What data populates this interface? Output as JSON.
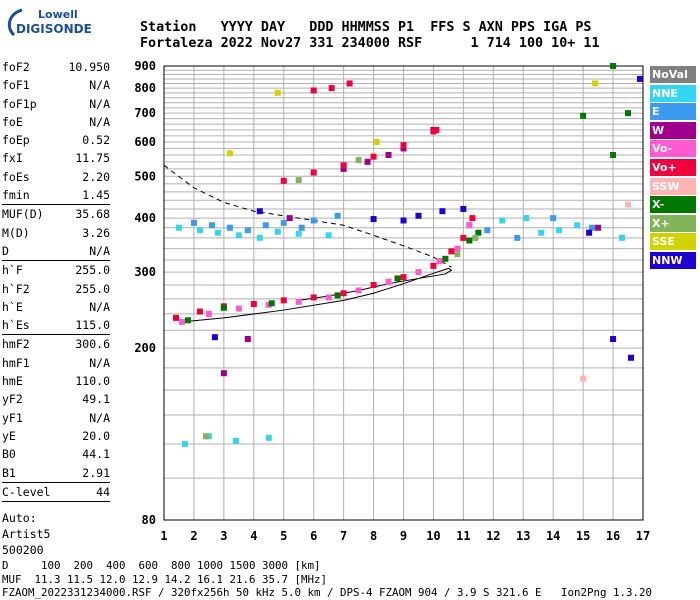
{
  "logo": {
    "line1": "Lowell",
    "line2": "DIGISONDE"
  },
  "header": {
    "line1": "Station   YYYY DAY   DDD HHMMSS P1  FFS S AXN PPS IGA PS",
    "line2": "Fortaleza 2022 Nov27 331 234000 RSF      1 714 100 10+ 11"
  },
  "params": {
    "group1": [
      {
        "label": "foF2",
        "value": "10.950"
      },
      {
        "label": "foF1",
        "value": "N/A"
      },
      {
        "label": "foF1p",
        "value": "N/A"
      },
      {
        "label": "foE",
        "value": "N/A"
      },
      {
        "label": "foEp",
        "value": "0.52"
      },
      {
        "label": "fxI",
        "value": "11.75"
      },
      {
        "label": "foEs",
        "value": "2.20"
      },
      {
        "label": "fmin",
        "value": "1.45"
      }
    ],
    "group2": [
      {
        "label": "MUF(D)",
        "value": "35.68"
      },
      {
        "label": "M(D)",
        "value": "3.26"
      },
      {
        "label": "D",
        "value": "N/A"
      }
    ],
    "group3": [
      {
        "label": "h`F",
        "value": "255.0"
      },
      {
        "label": "h`F2",
        "value": "255.0"
      },
      {
        "label": "h`E",
        "value": "N/A"
      },
      {
        "label": "h`Es",
        "value": "115.0"
      }
    ],
    "group4": [
      {
        "label": "hmF2",
        "value": "300.6"
      },
      {
        "label": "hmF1",
        "value": "N/A"
      },
      {
        "label": "hmE",
        "value": "110.0"
      },
      {
        "label": "yF2",
        "value": "49.1"
      },
      {
        "label": "yF1",
        "value": "N/A"
      },
      {
        "label": "yE",
        "value": "20.0"
      },
      {
        "label": "B0",
        "value": "44.1"
      },
      {
        "label": "B1",
        "value": "2.91"
      }
    ],
    "group5": [
      {
        "label": "C-level",
        "value": "44"
      }
    ],
    "auto": [
      "Auto:",
      "Artist5",
      "500200"
    ]
  },
  "legend": [
    {
      "label": "NoVal",
      "color": "#808080"
    },
    {
      "label": "NNE",
      "color": "#33d6f0"
    },
    {
      "label": "E",
      "color": "#3c9bef"
    },
    {
      "label": "W",
      "color": "#a0008c"
    },
    {
      "label": "Vo-",
      "color": "#ff5ad2"
    },
    {
      "label": "Vo+",
      "color": "#f0003c"
    },
    {
      "label": "SSW",
      "color": "#ffb4b4"
    },
    {
      "label": "X-",
      "color": "#007800"
    },
    {
      "label": "X+",
      "color": "#82b45a"
    },
    {
      "label": "SSE",
      "color": "#d2d200"
    },
    {
      "label": "NNW",
      "color": "#1e00d2"
    }
  ],
  "footer": {
    "line1": "D     100  200  400  600  800 1000 1500 3000 [km]",
    "line2": "MUF  11.3 11.5 12.0 12.9 14.2 16.1 21.6 35.7 [MHz]",
    "line3": "FZAOM_2022331234000.RSF / 320fx256h 50 kHz 5.0 km / DPS-4 FZAOM 904 / 3.9 S 321.6 E   Ion2Png 1.3.20"
  },
  "chart_data": {
    "type": "scatter",
    "title": "",
    "xlabel": "",
    "ylabel": "",
    "xlim": [
      1,
      17
    ],
    "ylim": [
      80,
      900
    ],
    "y_scale": "log",
    "x_ticks": [
      1,
      2,
      3,
      4,
      5,
      6,
      7,
      8,
      9,
      10,
      11,
      12,
      13,
      14,
      15,
      16,
      17
    ],
    "y_ticks": [
      80,
      200,
      300,
      400,
      500,
      600,
      700,
      800,
      900
    ],
    "grid": true,
    "series": [
      {
        "name": "NNE",
        "points": [
          [
            1.5,
            380
          ],
          [
            2.2,
            375
          ],
          [
            2.8,
            370
          ],
          [
            3.5,
            365
          ],
          [
            4.2,
            360
          ],
          [
            4.8,
            372
          ],
          [
            5.5,
            368
          ],
          [
            6.5,
            365
          ],
          [
            12.3,
            395
          ],
          [
            13.1,
            400
          ],
          [
            13.6,
            370
          ],
          [
            14.2,
            375
          ],
          [
            14.8,
            385
          ],
          [
            16.3,
            360
          ],
          [
            1.7,
            120
          ],
          [
            2.5,
            125
          ],
          [
            3.4,
            122
          ],
          [
            4.5,
            124
          ]
        ]
      },
      {
        "name": "E",
        "points": [
          [
            2.0,
            390
          ],
          [
            2.6,
            385
          ],
          [
            3.2,
            380
          ],
          [
            3.8,
            375
          ],
          [
            4.4,
            385
          ],
          [
            5.0,
            390
          ],
          [
            5.6,
            380
          ],
          [
            6.0,
            395
          ],
          [
            6.8,
            405
          ],
          [
            11.2,
            385
          ],
          [
            11.8,
            375
          ],
          [
            12.8,
            360
          ],
          [
            14.0,
            400
          ],
          [
            15.3,
            380
          ]
        ]
      },
      {
        "name": "W",
        "points": [
          [
            3.0,
            175
          ],
          [
            3.8,
            210
          ],
          [
            5.2,
            400
          ],
          [
            7.0,
            520
          ],
          [
            7.8,
            540
          ],
          [
            8.5,
            560
          ],
          [
            9.0,
            580
          ],
          [
            10.0,
            640
          ],
          [
            15.5,
            380
          ]
        ]
      },
      {
        "name": "Vo-",
        "points": [
          [
            1.6,
            230
          ],
          [
            2.5,
            240
          ],
          [
            3.5,
            247
          ],
          [
            4.5,
            252
          ],
          [
            5.5,
            256
          ],
          [
            6.5,
            262
          ],
          [
            7.5,
            272
          ],
          [
            8.5,
            285
          ],
          [
            9.5,
            300
          ],
          [
            10.2,
            318
          ],
          [
            10.8,
            340
          ],
          [
            11.2,
            385
          ]
        ]
      },
      {
        "name": "Vo+",
        "points": [
          [
            1.4,
            235
          ],
          [
            2.2,
            243
          ],
          [
            3.0,
            250
          ],
          [
            4.0,
            253
          ],
          [
            5.0,
            258
          ],
          [
            6.0,
            262
          ],
          [
            7.0,
            268
          ],
          [
            8.0,
            280
          ],
          [
            9.0,
            292
          ],
          [
            10.0,
            310
          ],
          [
            10.6,
            335
          ],
          [
            11.0,
            360
          ],
          [
            11.3,
            400
          ],
          [
            5.0,
            488
          ],
          [
            6.0,
            510
          ],
          [
            7.0,
            530
          ],
          [
            8.0,
            555
          ],
          [
            9.0,
            590
          ],
          [
            10.0,
            635
          ],
          [
            6.0,
            790
          ],
          [
            6.6,
            800
          ],
          [
            7.2,
            820
          ],
          [
            10.1,
            640
          ]
        ]
      },
      {
        "name": "SSW",
        "points": [
          [
            15.0,
            170
          ],
          [
            16.5,
            430
          ]
        ]
      },
      {
        "name": "X-",
        "points": [
          [
            1.8,
            232
          ],
          [
            3.0,
            248
          ],
          [
            4.6,
            254
          ],
          [
            6.8,
            265
          ],
          [
            8.8,
            290
          ],
          [
            10.4,
            322
          ],
          [
            11.2,
            355
          ],
          [
            11.5,
            370
          ],
          [
            15.0,
            690
          ],
          [
            16.0,
            560
          ],
          [
            16.5,
            700
          ],
          [
            16.0,
            900
          ]
        ]
      },
      {
        "name": "X+",
        "points": [
          [
            2.4,
            125
          ],
          [
            5.5,
            490
          ],
          [
            7.5,
            545
          ],
          [
            10.8,
            330
          ],
          [
            11.4,
            360
          ]
        ]
      },
      {
        "name": "SSE",
        "points": [
          [
            3.2,
            565
          ],
          [
            4.8,
            780
          ],
          [
            8.1,
            600
          ],
          [
            15.4,
            820
          ]
        ]
      },
      {
        "name": "NNW",
        "points": [
          [
            2.7,
            212
          ],
          [
            4.2,
            415
          ],
          [
            8.0,
            398
          ],
          [
            9.0,
            395
          ],
          [
            9.5,
            405
          ],
          [
            10.3,
            415
          ],
          [
            11.0,
            420
          ],
          [
            16.0,
            210
          ],
          [
            16.6,
            190
          ],
          [
            16.9,
            840
          ],
          [
            15.2,
            370
          ]
        ]
      }
    ],
    "profile_dashed": [
      [
        1,
        530
      ],
      [
        2,
        470
      ],
      [
        3,
        435
      ],
      [
        4,
        415
      ],
      [
        5,
        405
      ],
      [
        6,
        395
      ],
      [
        7,
        385
      ],
      [
        8,
        365
      ],
      [
        9,
        345
      ],
      [
        10,
        325
      ],
      [
        10.6,
        308
      ]
    ],
    "profile_solid": [
      [
        1.6,
        230
      ],
      [
        3,
        235
      ],
      [
        5,
        245
      ],
      [
        7,
        258
      ],
      [
        8,
        268
      ],
      [
        9,
        282
      ],
      [
        10,
        298
      ],
      [
        10.5,
        306
      ],
      [
        10.6,
        303
      ],
      [
        10.4,
        297
      ],
      [
        9.5,
        290
      ],
      [
        8.5,
        282
      ],
      [
        7.5,
        272
      ],
      [
        6.5,
        264
      ],
      [
        5.5,
        258
      ]
    ]
  }
}
